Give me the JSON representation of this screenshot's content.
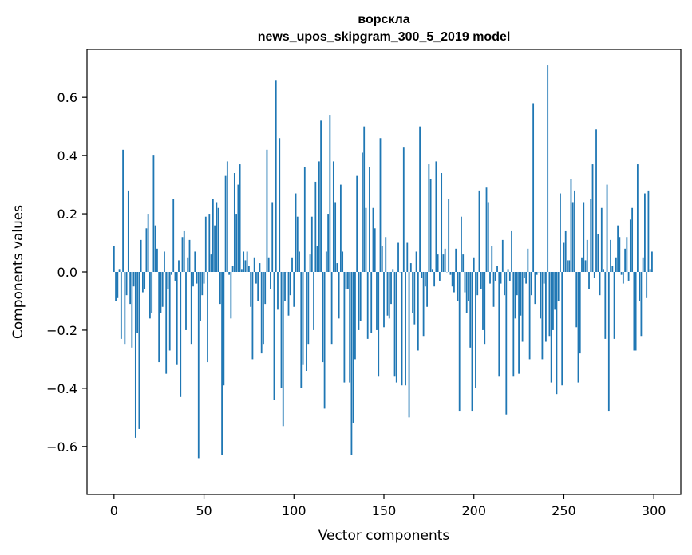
{
  "chart_data": {
    "type": "bar",
    "title": "ворскла",
    "subtitle": "news_upos_skipgram_300_5_2019 model",
    "xlabel": "Vector components",
    "ylabel": "Components values",
    "xlim": [
      -15,
      315
    ],
    "ylim": [
      -0.765,
      0.765
    ],
    "xticks": [
      0,
      50,
      100,
      150,
      200,
      250,
      300
    ],
    "yticks": [
      -0.6,
      -0.4,
      -0.2,
      0.0,
      0.2,
      0.4,
      0.6
    ],
    "ytick_labels": [
      "−0.6",
      "−0.4",
      "−0.2",
      "0.0",
      "0.2",
      "0.4",
      "0.6"
    ],
    "bar_color": "#1f77b4",
    "grid": false,
    "values": [
      0.09,
      -0.1,
      -0.09,
      0.01,
      -0.23,
      0.42,
      -0.25,
      -0.08,
      0.28,
      -0.11,
      -0.26,
      -0.05,
      -0.57,
      -0.21,
      -0.54,
      0.11,
      -0.07,
      -0.06,
      0.15,
      0.2,
      -0.16,
      -0.14,
      0.4,
      0.16,
      0.08,
      -0.31,
      -0.14,
      -0.12,
      0.07,
      -0.35,
      -0.06,
      -0.27,
      -0.01,
      0.25,
      -0.03,
      -0.32,
      0.04,
      -0.43,
      0.12,
      0.14,
      -0.2,
      0.05,
      0.11,
      -0.25,
      -0.05,
      0.07,
      -0.04,
      -0.64,
      -0.17,
      -0.08,
      -0.04,
      0.19,
      -0.31,
      0.2,
      0.06,
      0.25,
      0.16,
      0.24,
      0.22,
      -0.11,
      -0.63,
      -0.39,
      0.33,
      0.38,
      -0.01,
      -0.16,
      0.02,
      0.34,
      0.2,
      0.3,
      0.37,
      0.01,
      0.07,
      0.04,
      0.07,
      0.02,
      -0.12,
      -0.3,
      0.05,
      -0.04,
      -0.1,
      0.03,
      -0.28,
      -0.25,
      -0.11,
      0.42,
      0.05,
      -0.06,
      0.24,
      -0.44,
      0.66,
      -0.13,
      0.46,
      -0.4,
      -0.53,
      -0.1,
      0.0,
      -0.15,
      -0.08,
      0.05,
      -0.12,
      0.27,
      0.19,
      0.07,
      -0.4,
      -0.32,
      0.36,
      -0.34,
      -0.25,
      0.06,
      0.19,
      -0.2,
      0.31,
      0.09,
      0.38,
      0.52,
      -0.31,
      -0.47,
      0.07,
      0.2,
      0.54,
      -0.25,
      0.38,
      0.24,
      0.03,
      -0.16,
      0.3,
      0.07,
      -0.38,
      -0.06,
      -0.06,
      -0.38,
      -0.63,
      -0.52,
      -0.3,
      0.33,
      -0.2,
      -0.17,
      0.41,
      0.5,
      0.22,
      -0.23,
      0.36,
      -0.21,
      0.22,
      0.15,
      -0.2,
      -0.36,
      0.46,
      0.09,
      -0.19,
      0.12,
      -0.15,
      -0.16,
      -0.11,
      0.01,
      -0.36,
      -0.38,
      0.1,
      0.0,
      -0.39,
      0.43,
      -0.39,
      0.1,
      -0.5,
      0.03,
      -0.14,
      -0.18,
      0.07,
      -0.27,
      0.5,
      -0.02,
      -0.22,
      -0.05,
      -0.12,
      0.37,
      0.32,
      0.01,
      -0.05,
      0.38,
      0.06,
      -0.03,
      0.34,
      0.06,
      0.08,
      0.0,
      0.25,
      -0.01,
      -0.05,
      -0.07,
      0.08,
      -0.1,
      -0.48,
      0.19,
      0.06,
      -0.07,
      -0.14,
      -0.1,
      -0.26,
      -0.48,
      0.05,
      -0.4,
      -0.08,
      0.28,
      -0.06,
      -0.2,
      -0.25,
      0.29,
      0.24,
      -0.04,
      0.09,
      -0.12,
      -0.03,
      0.02,
      -0.36,
      -0.04,
      0.11,
      -0.08,
      -0.49,
      0.01,
      -0.03,
      0.14,
      -0.36,
      -0.16,
      -0.08,
      -0.35,
      -0.15,
      -0.24,
      -0.02,
      -0.04,
      0.08,
      -0.3,
      -0.08,
      0.58,
      -0.11,
      -0.01,
      0.0,
      -0.16,
      -0.3,
      -0.04,
      -0.24,
      0.71,
      -0.22,
      -0.38,
      -0.2,
      -0.13,
      -0.42,
      -0.1,
      0.27,
      -0.39,
      0.1,
      0.14,
      0.04,
      0.04,
      0.32,
      0.24,
      0.28,
      -0.19,
      -0.38,
      -0.28,
      0.05,
      0.24,
      0.04,
      0.11,
      -0.06,
      0.25,
      0.37,
      -0.02,
      0.49,
      0.13,
      -0.08,
      0.22,
      0.01,
      -0.23,
      0.3,
      -0.48,
      0.11,
      0.02,
      -0.23,
      0.05,
      0.16,
      0.12,
      -0.01,
      -0.04,
      0.08,
      0.12,
      -0.03,
      0.18,
      0.22,
      -0.27,
      -0.27,
      0.37,
      -0.1,
      -0.22,
      0.05,
      0.27,
      -0.09,
      0.28,
      0.01,
      0.07
    ]
  }
}
